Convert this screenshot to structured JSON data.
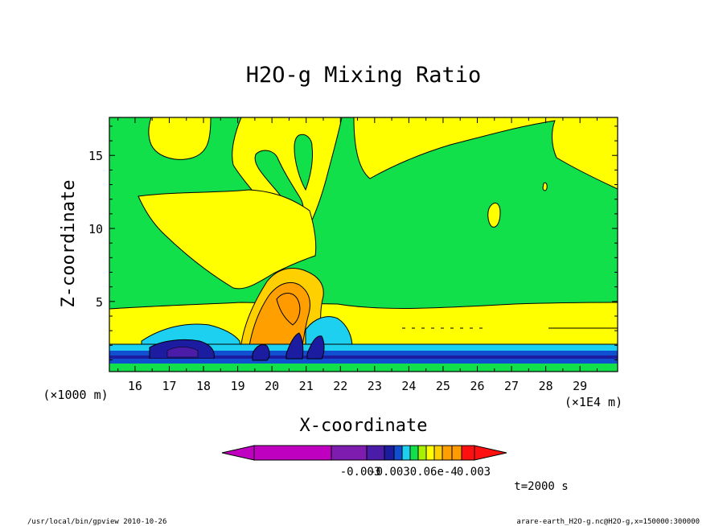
{
  "chart_data": {
    "type": "heatmap",
    "title": "H2O-g Mixing Ratio",
    "xlabel": "X-coordinate",
    "ylabel": "Z-coordinate",
    "x_unit": "(×1E4 m)",
    "y_unit": "(×1000 m)",
    "xlim": [
      15.25,
      30.1
    ],
    "ylim": [
      0.2,
      17.6
    ],
    "x_ticks": [
      16,
      17,
      18,
      19,
      20,
      21,
      22,
      23,
      24,
      25,
      26,
      27,
      28,
      29
    ],
    "y_ticks": [
      5,
      10,
      15
    ],
    "colorbar": {
      "colors": [
        "#c000c0",
        "#c000c0",
        "#7f1cb0",
        "#4b1ca8",
        "#1c1ca0",
        "#0f4fd0",
        "#1ed0f0",
        "#12e04a",
        "#a6f000",
        "#ffff00",
        "#ffd000",
        "#ffa000",
        "#ff9a00",
        "#ff1010"
      ],
      "labels": [
        "-0.003",
        "-0.0030.06e-4",
        "0.003"
      ],
      "extend": "both"
    },
    "annotation": "t=2000 s"
  },
  "footer": {
    "left": "/usr/local/bin/gpview  2010-10-26",
    "right": "arare-earth_H2O-g.nc@H2O-g,x=150000:300000"
  }
}
